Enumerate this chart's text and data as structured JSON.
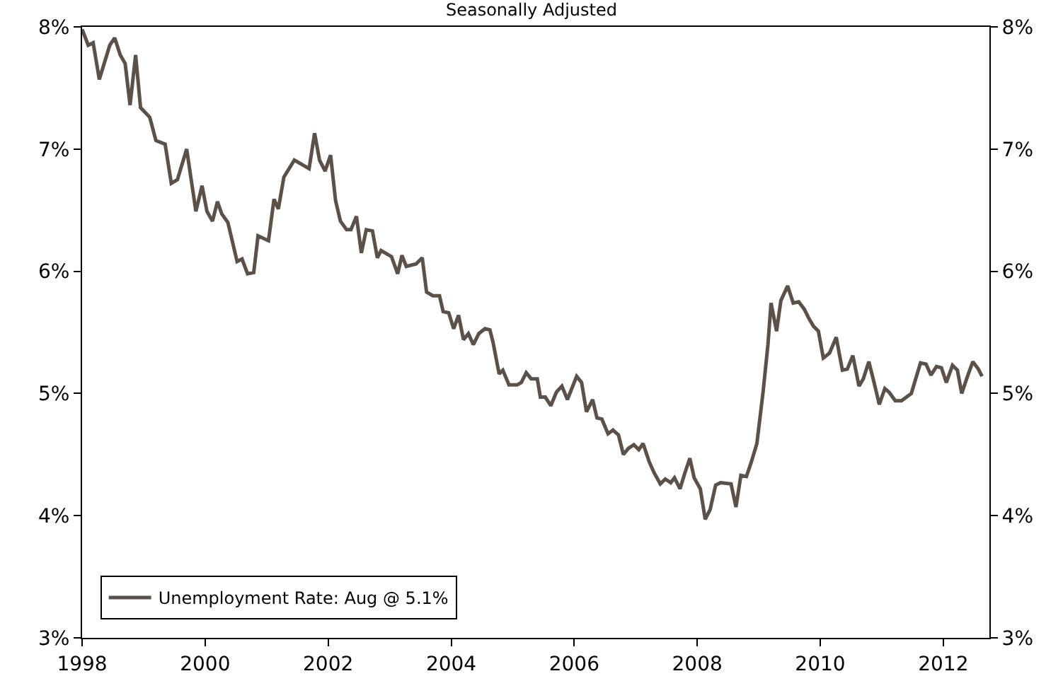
{
  "chart_data": {
    "type": "line",
    "title": "Seasonally Adjusted",
    "x": [
      1998.0,
      1998.1,
      1998.18,
      1998.28,
      1998.45,
      1998.53,
      1998.62,
      1998.7,
      1998.78,
      1998.87,
      1998.95,
      1999.1,
      1999.2,
      1999.35,
      1999.45,
      1999.55,
      1999.7,
      1999.85,
      1999.95,
      2000.03,
      2000.12,
      2000.2,
      2000.27,
      2000.37,
      2000.52,
      2000.6,
      2000.69,
      2000.79,
      2000.86,
      2001.03,
      2001.12,
      2001.19,
      2001.28,
      2001.45,
      2001.69,
      2001.78,
      2001.86,
      2001.95,
      2002.04,
      2002.12,
      2002.2,
      2002.3,
      2002.37,
      2002.46,
      2002.54,
      2002.62,
      2002.72,
      2002.8,
      2002.86,
      2003.03,
      2003.13,
      2003.2,
      2003.27,
      2003.43,
      2003.53,
      2003.6,
      2003.7,
      2003.81,
      2003.87,
      2003.96,
      2004.04,
      2004.12,
      2004.2,
      2004.28,
      2004.36,
      2004.45,
      2004.55,
      2004.63,
      2004.68,
      2004.78,
      2004.84,
      2004.94,
      2005.07,
      2005.14,
      2005.22,
      2005.3,
      2005.4,
      2005.45,
      2005.53,
      2005.62,
      2005.71,
      2005.8,
      2005.89,
      2006.04,
      2006.12,
      2006.2,
      2006.3,
      2006.37,
      2006.45,
      2006.55,
      2006.63,
      2006.72,
      2006.8,
      2006.88,
      2006.97,
      2007.05,
      2007.12,
      2007.22,
      2007.3,
      2007.4,
      2007.48,
      2007.57,
      2007.63,
      2007.72,
      2007.8,
      2007.88,
      2007.95,
      2008.05,
      2008.13,
      2008.21,
      2008.3,
      2008.38,
      2008.55,
      2008.63,
      2008.71,
      2008.8,
      2008.88,
      2008.97,
      2009.07,
      2009.15,
      2009.2,
      2009.29,
      2009.36,
      2009.47,
      2009.56,
      2009.65,
      2009.74,
      2009.82,
      2009.89,
      2009.97,
      2010.05,
      2010.15,
      2010.26,
      2010.36,
      2010.44,
      2010.53,
      2010.63,
      2010.7,
      2010.79,
      2010.88,
      2010.96,
      2011.05,
      2011.12,
      2011.22,
      2011.32,
      2011.48,
      2011.63,
      2011.72,
      2011.8,
      2011.89,
      2011.97,
      2012.05,
      2012.15,
      2012.23,
      2012.3,
      2012.38,
      2012.48,
      2012.57,
      2012.63
    ],
    "series": [
      {
        "name": "Unemployment Rate: Aug @ 5.1%",
        "color": "#5b5148",
        "values": [
          7.98,
          7.85,
          7.87,
          7.57,
          7.85,
          7.91,
          7.77,
          7.7,
          7.36,
          7.77,
          7.34,
          7.26,
          7.07,
          7.04,
          6.72,
          6.75,
          7.0,
          6.49,
          6.7,
          6.49,
          6.41,
          6.57,
          6.47,
          6.4,
          6.08,
          6.1,
          5.98,
          5.99,
          6.29,
          6.25,
          6.59,
          6.51,
          6.77,
          6.91,
          6.84,
          7.13,
          6.91,
          6.82,
          6.95,
          6.58,
          6.41,
          6.34,
          6.34,
          6.45,
          6.15,
          6.34,
          6.33,
          6.11,
          6.17,
          6.12,
          5.98,
          6.13,
          6.04,
          6.06,
          6.11,
          5.83,
          5.8,
          5.8,
          5.67,
          5.66,
          5.53,
          5.64,
          5.44,
          5.49,
          5.4,
          5.49,
          5.53,
          5.52,
          5.42,
          5.16,
          5.19,
          5.07,
          5.07,
          5.09,
          5.17,
          5.12,
          5.12,
          4.97,
          4.97,
          4.9,
          5.01,
          5.06,
          4.95,
          5.14,
          5.09,
          4.85,
          4.95,
          4.8,
          4.79,
          4.67,
          4.7,
          4.66,
          4.5,
          4.55,
          4.58,
          4.54,
          4.59,
          4.44,
          4.35,
          4.26,
          4.3,
          4.27,
          4.31,
          4.22,
          4.35,
          4.47,
          4.31,
          4.22,
          3.97,
          4.05,
          4.25,
          4.27,
          4.26,
          4.07,
          4.33,
          4.32,
          4.44,
          4.59,
          5.01,
          5.4,
          5.74,
          5.51,
          5.76,
          5.88,
          5.74,
          5.75,
          5.69,
          5.61,
          5.55,
          5.51,
          5.29,
          5.33,
          5.46,
          5.19,
          5.2,
          5.31,
          5.06,
          5.12,
          5.26,
          5.08,
          4.91,
          5.04,
          5.01,
          4.94,
          4.94,
          5.0,
          5.25,
          5.24,
          5.15,
          5.22,
          5.21,
          5.09,
          5.23,
          5.19,
          5.0,
          5.12,
          5.26,
          5.2,
          5.14
        ]
      }
    ],
    "xlim": [
      1998,
      2012.75
    ],
    "xticks": [
      1998,
      2000,
      2002,
      2004,
      2006,
      2008,
      2010,
      2012
    ],
    "ylim": [
      3,
      8
    ],
    "yticks": [
      {
        "value": 3,
        "label": "3%"
      },
      {
        "value": 4,
        "label": "4%"
      },
      {
        "value": 5,
        "label": "5%"
      },
      {
        "value": 6,
        "label": "6%"
      },
      {
        "value": 7,
        "label": "7%"
      },
      {
        "value": 8,
        "label": "8%"
      }
    ],
    "y2lim": [
      3,
      8
    ],
    "y2ticks": [
      {
        "value": 3,
        "label": "3%"
      },
      {
        "value": 4,
        "label": "4%"
      },
      {
        "value": 5,
        "label": "5%"
      },
      {
        "value": 6,
        "label": "6%"
      },
      {
        "value": 7,
        "label": "7%"
      },
      {
        "value": 8,
        "label": "8%"
      }
    ],
    "legend": "bottom left",
    "marker": "none",
    "line_style": "solid"
  }
}
